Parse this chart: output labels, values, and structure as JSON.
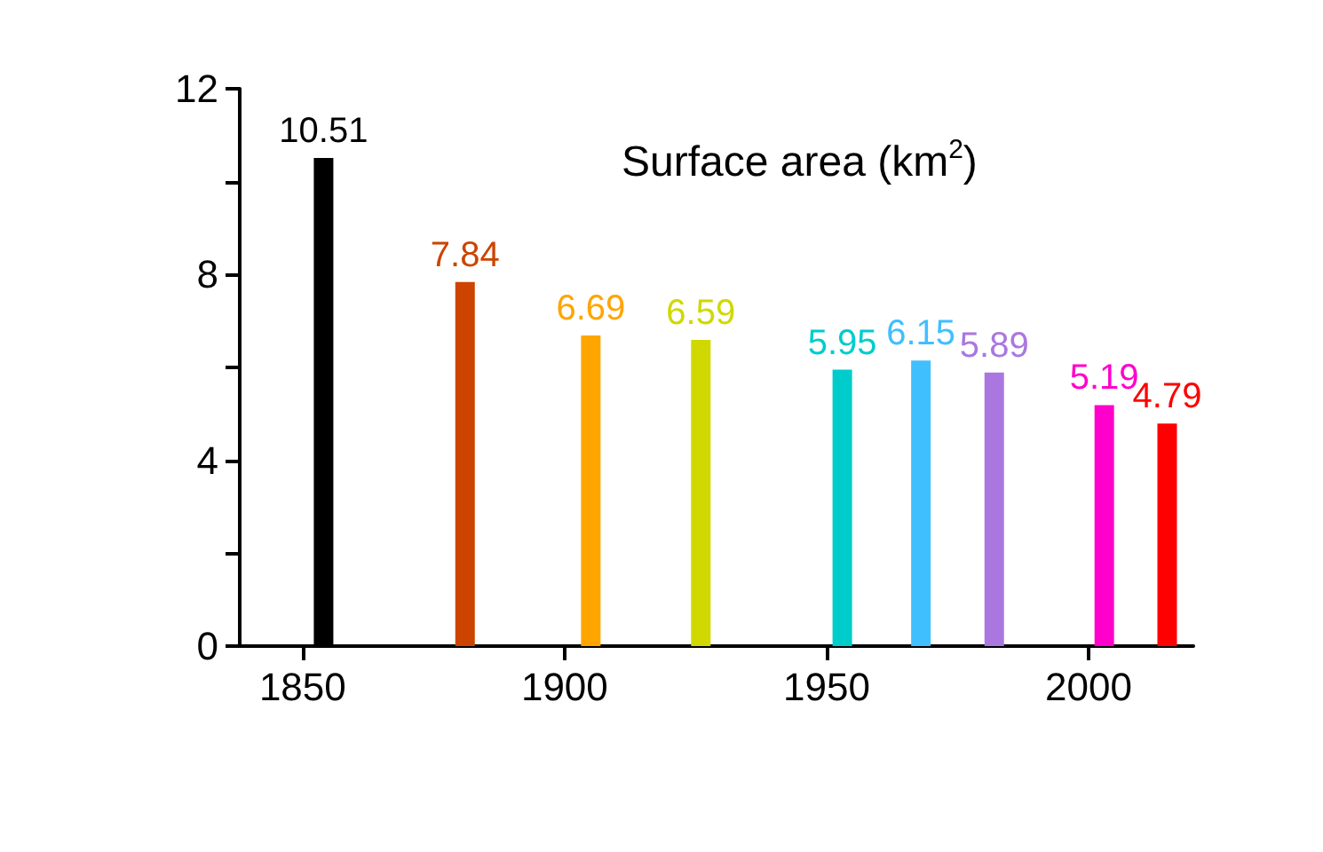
{
  "chart_data": {
    "type": "bar",
    "title": "Surface area (km$^{2}$)",
    "x": [
      1854,
      1881,
      1905,
      1926,
      1953,
      1968,
      1982,
      2003,
      2015
    ],
    "values": [
      10.51,
      7.84,
      6.69,
      6.59,
      5.95,
      6.15,
      5.89,
      5.19,
      4.79
    ],
    "colors": [
      "#000000",
      "#cc4400",
      "#ffa500",
      "#d0d800",
      "#00cccc",
      "#40bfff",
      "#aa77e0",
      "#ff00cc",
      "#ff0000"
    ],
    "xlim": [
      1838,
      2020
    ],
    "xticks": [
      1850,
      1900,
      1950,
      2000
    ],
    "ylim": [
      0,
      12
    ],
    "yticks": [
      0,
      {
        "value": 2,
        "label": null
      },
      4,
      {
        "value": 6,
        "label": null
      },
      8,
      {
        "value": 10,
        "label": null
      },
      12
    ],
    "data_labels": true
  }
}
